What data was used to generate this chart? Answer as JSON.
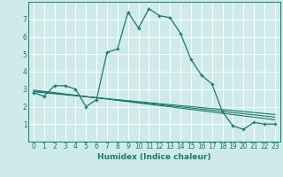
{
  "title": "",
  "xlabel": "Humidex (Indice chaleur)",
  "background_color": "#ceeaea",
  "grid_color": "#ffffff",
  "line_color": "#1a7a6e",
  "xlim": [
    -0.5,
    23.5
  ],
  "ylim": [
    0,
    8
  ],
  "xticks": [
    0,
    1,
    2,
    3,
    4,
    5,
    6,
    7,
    8,
    9,
    10,
    11,
    12,
    13,
    14,
    15,
    16,
    17,
    18,
    19,
    20,
    21,
    22,
    23
  ],
  "yticks": [
    1,
    2,
    3,
    4,
    5,
    6,
    7
  ],
  "series1_x": [
    0,
    1,
    2,
    3,
    4,
    5,
    6,
    7,
    8,
    9,
    10,
    11,
    12,
    13,
    14,
    15,
    16,
    17,
    18,
    19,
    20,
    21,
    22,
    23
  ],
  "series1_y": [
    2.8,
    2.6,
    3.2,
    3.2,
    3.0,
    2.0,
    2.4,
    5.1,
    5.3,
    7.4,
    6.5,
    7.6,
    7.2,
    7.1,
    6.2,
    4.7,
    3.8,
    3.3,
    1.7,
    0.9,
    0.7,
    1.1,
    1.0,
    1.0
  ],
  "series2_x": [
    0,
    23
  ],
  "series2_y": [
    2.85,
    1.55
  ],
  "series3_x": [
    0,
    23
  ],
  "series3_y": [
    2.9,
    1.4
  ],
  "series4_x": [
    0,
    23
  ],
  "series4_y": [
    2.95,
    1.25
  ]
}
